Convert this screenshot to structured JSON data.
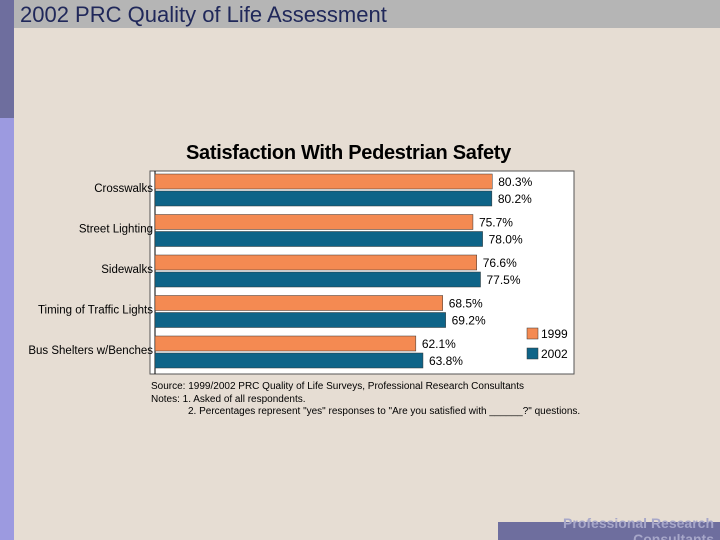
{
  "header": {
    "title": "2002 PRC Quality of Life Assessment"
  },
  "footer": {
    "brand": "Professional Research Consultants"
  },
  "colors": {
    "series_1999": "#f48a52",
    "series_2002": "#0e6488",
    "title_bar": "#b5b5b5",
    "strip_dark": "#6e6e9e",
    "strip_light": "#9c9ae0"
  },
  "chart_data": {
    "type": "bar",
    "orientation": "horizontal",
    "title": "Satisfaction With Pedestrian Safety",
    "categories": [
      "Crosswalks",
      "Street Lighting",
      "Sidewalks",
      "Timing of Traffic Lights",
      "Bus Shelters w/Benches"
    ],
    "series": [
      {
        "name": "1999",
        "values": [
          80.3,
          75.7,
          76.6,
          68.5,
          62.1
        ],
        "labels": [
          "80.3%",
          "75.7%",
          "76.6%",
          "68.5%",
          "62.1%"
        ]
      },
      {
        "name": "2002",
        "values": [
          80.2,
          78.0,
          77.5,
          69.2,
          63.8
        ],
        "labels": [
          "80.2%",
          "78.0%",
          "77.5%",
          "69.2%",
          "63.8%"
        ]
      }
    ],
    "xlim": [
      0,
      100
    ],
    "legend_position": "bottom-right",
    "source": "Source: 1999/2002 PRC Quality of Life Surveys, Professional Research Consultants",
    "notes": [
      "Notes:  1. Asked of all respondents.",
      "2. Percentages represent \"yes\" responses to \"Are you satisfied with ______?\" questions."
    ]
  }
}
